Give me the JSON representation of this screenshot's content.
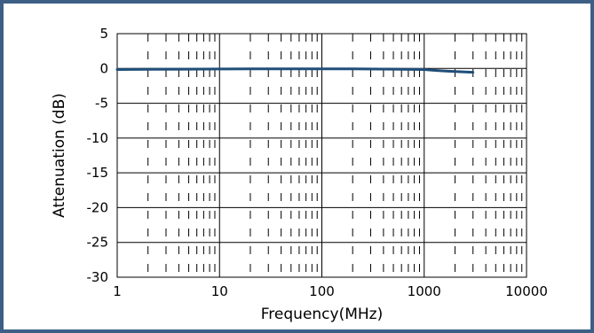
{
  "chart_data": {
    "type": "line",
    "title": "",
    "xlabel": "Frequency(MHz)",
    "ylabel": "Attenuation (dB)",
    "x_scale": "log",
    "xlim": [
      1,
      10000
    ],
    "ylim": [
      -30,
      5
    ],
    "x_ticks": [
      1,
      10,
      100,
      1000,
      10000
    ],
    "x_tick_labels": [
      "1",
      "10",
      "100",
      "1000",
      "10000"
    ],
    "y_ticks": [
      5,
      0,
      -5,
      -10,
      -15,
      -20,
      -25,
      -30
    ],
    "y_tick_labels": [
      "5",
      "0",
      "-5",
      "-10",
      "-15",
      "-20",
      "-25",
      "-30"
    ],
    "grid": true,
    "legend": "none",
    "series": [
      {
        "color": "#1f4e79",
        "x": [
          1,
          2,
          5,
          10,
          20,
          50,
          100,
          200,
          500,
          1000,
          1200,
          1500,
          2000,
          2500,
          3000
        ],
        "y": [
          -0.15,
          -0.12,
          -0.1,
          -0.08,
          -0.07,
          -0.06,
          -0.06,
          -0.07,
          -0.1,
          -0.15,
          -0.25,
          -0.35,
          -0.45,
          -0.5,
          -0.55
        ]
      }
    ]
  }
}
